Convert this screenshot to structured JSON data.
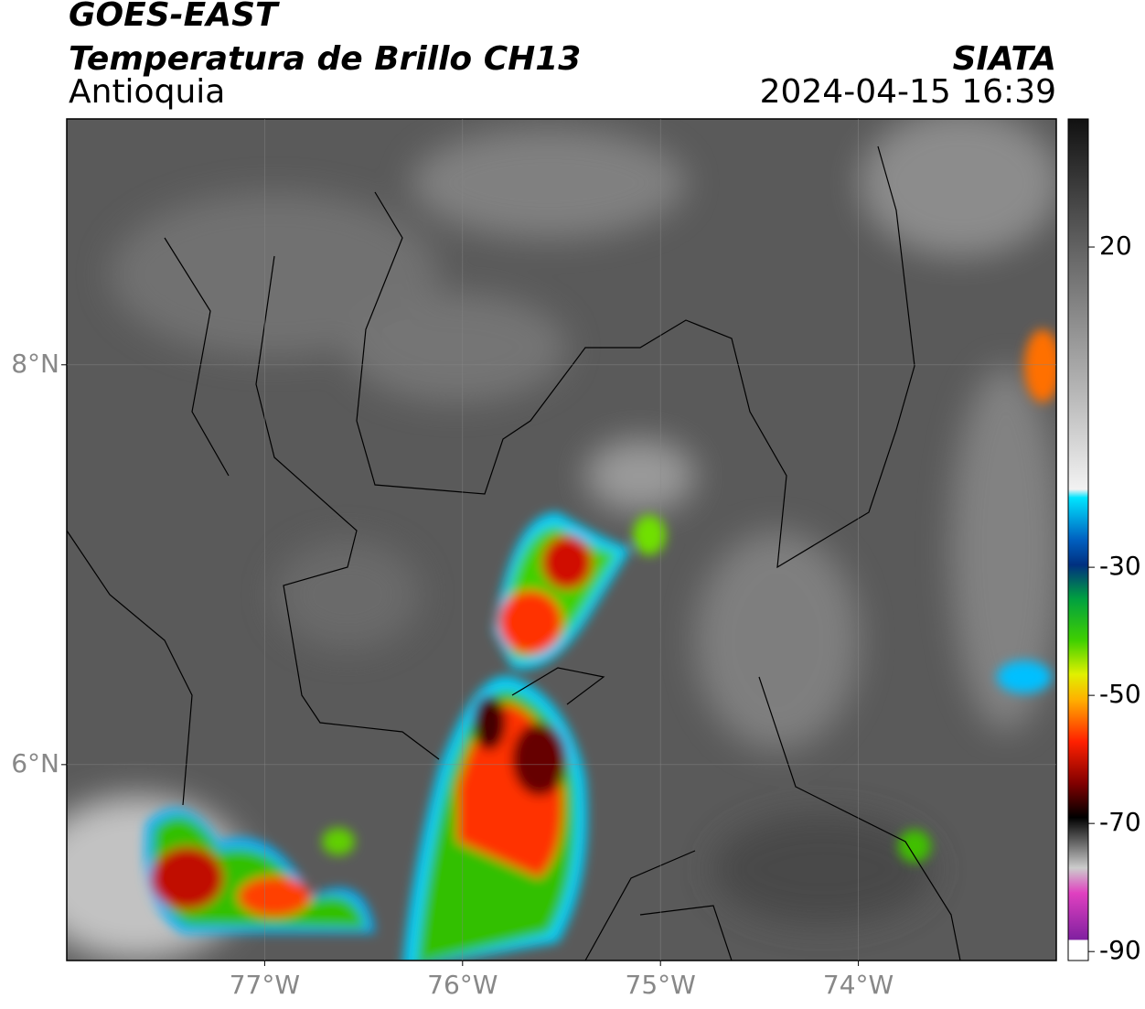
{
  "header": {
    "satellite": "GOES-EAST",
    "product": "Temperatura de Brillo CH13",
    "region": "Antioquia",
    "source": "SIATA",
    "timestamp": "2024-04-15 16:39"
  },
  "map": {
    "xlim": [
      -78,
      -73
    ],
    "ylim": [
      5.02,
      9.23
    ],
    "xticks": [
      {
        "value": -77,
        "label": "77°W"
      },
      {
        "value": -76,
        "label": "76°W"
      },
      {
        "value": -75,
        "label": "75°W"
      },
      {
        "value": -74,
        "label": "74°W"
      }
    ],
    "yticks": [
      {
        "value": 6,
        "label": "6°N"
      },
      {
        "value": 8,
        "label": "8°N"
      }
    ],
    "grid": true
  },
  "colorbar": {
    "lim": [
      -91.4,
      40
    ],
    "ticks": [
      20,
      -30,
      -50,
      -70,
      -90
    ]
  }
}
